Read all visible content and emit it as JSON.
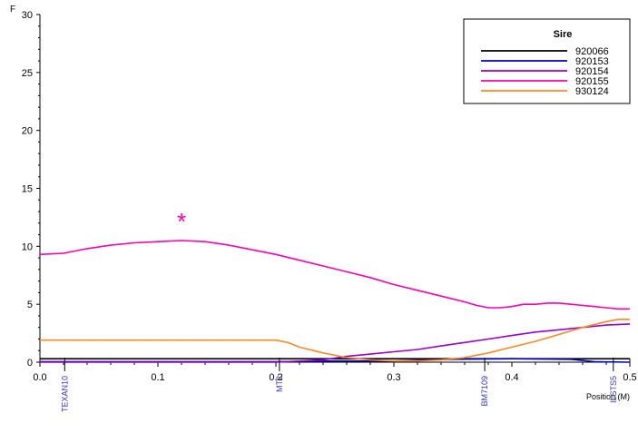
{
  "chart_data": {
    "type": "line",
    "title": "",
    "ylabel": "F",
    "xlabel": "Position (M)",
    "xlim": [
      0,
      0.5
    ],
    "ylim": [
      0,
      30
    ],
    "x_ticks": [
      0.0,
      0.1,
      0.2,
      0.3,
      0.4,
      0.5
    ],
    "x_tick_labels": [
      "0.0",
      "0.1",
      "0.2",
      "0.3",
      "0.4",
      "0.5"
    ],
    "y_ticks": [
      0,
      5,
      10,
      15,
      20,
      25,
      30
    ],
    "y_tick_labels": [
      "0",
      "5",
      "10",
      "15",
      "20",
      "25",
      "30"
    ],
    "grid": false,
    "legend": {
      "title": "Sire",
      "placement": "top-right"
    },
    "markers": [
      {
        "label": "TEXAN10",
        "x": 0.021
      },
      {
        "label": "MT2",
        "x": 0.203
      },
      {
        "label": "BM7109",
        "x": 0.377
      },
      {
        "label": "ILSTS5",
        "x": 0.486
      }
    ],
    "annotation": {
      "text": "*",
      "x": 0.12,
      "y": 12.2,
      "color": "#ff00aa"
    },
    "series": [
      {
        "name": "920066",
        "color": "#000000",
        "x": [
          0,
          0.05,
          0.1,
          0.15,
          0.2,
          0.25,
          0.3,
          0.35,
          0.4,
          0.45,
          0.5
        ],
        "y": [
          0.3,
          0.3,
          0.3,
          0.3,
          0.3,
          0.3,
          0.3,
          0.3,
          0.3,
          0.3,
          0.3
        ]
      },
      {
        "name": "920153",
        "color": "#0000cc",
        "x": [
          0,
          0.1,
          0.2,
          0.25,
          0.3,
          0.35,
          0.4,
          0.45,
          0.47,
          0.5
        ],
        "y": [
          0.05,
          0.05,
          0.05,
          0.1,
          0.1,
          0.25,
          0.3,
          0.25,
          0.05,
          0.0
        ]
      },
      {
        "name": "920154",
        "color": "#9900cc",
        "x": [
          0,
          0.1,
          0.2,
          0.24,
          0.26,
          0.28,
          0.3,
          0.32,
          0.34,
          0.36,
          0.38,
          0.4,
          0.42,
          0.44,
          0.46,
          0.48,
          0.5
        ],
        "y": [
          0.0,
          0.0,
          0.0,
          0.2,
          0.5,
          0.7,
          0.9,
          1.1,
          1.4,
          1.7,
          2.0,
          2.3,
          2.6,
          2.8,
          3.0,
          3.2,
          3.3
        ]
      },
      {
        "name": "920155",
        "color": "#ff00aa",
        "x": [
          0,
          0.02,
          0.04,
          0.06,
          0.08,
          0.1,
          0.12,
          0.14,
          0.16,
          0.18,
          0.2,
          0.22,
          0.24,
          0.26,
          0.28,
          0.3,
          0.32,
          0.34,
          0.36,
          0.37,
          0.38,
          0.39,
          0.4,
          0.41,
          0.42,
          0.43,
          0.44,
          0.45,
          0.46,
          0.47,
          0.48,
          0.49,
          0.5
        ],
        "y": [
          9.3,
          9.4,
          9.8,
          10.1,
          10.3,
          10.4,
          10.5,
          10.4,
          10.1,
          9.7,
          9.3,
          8.8,
          8.3,
          7.8,
          7.3,
          6.7,
          6.2,
          5.7,
          5.2,
          4.9,
          4.7,
          4.7,
          4.8,
          5.0,
          5.0,
          5.1,
          5.1,
          5.0,
          4.9,
          4.8,
          4.7,
          4.6,
          4.6
        ]
      },
      {
        "name": "930124",
        "color": "#ff8822",
        "x": [
          0,
          0.05,
          0.1,
          0.15,
          0.17,
          0.2,
          0.21,
          0.22,
          0.24,
          0.26,
          0.28,
          0.3,
          0.32,
          0.34,
          0.36,
          0.38,
          0.4,
          0.42,
          0.44,
          0.46,
          0.48,
          0.49,
          0.5
        ],
        "y": [
          1.9,
          1.9,
          1.9,
          1.9,
          1.9,
          1.9,
          1.7,
          1.3,
          0.8,
          0.4,
          0.2,
          0.1,
          0.1,
          0.2,
          0.4,
          0.8,
          1.3,
          1.8,
          2.4,
          3.0,
          3.5,
          3.7,
          3.7
        ]
      }
    ]
  }
}
